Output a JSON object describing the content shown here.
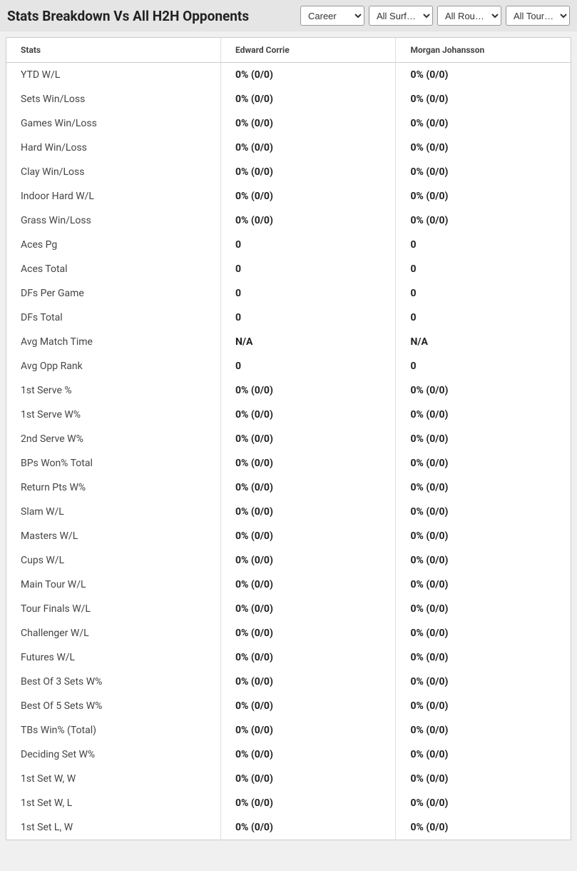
{
  "header": {
    "title": "Stats Breakdown Vs All H2H Opponents"
  },
  "filters": {
    "career": "Career",
    "surface": "All Surf…",
    "round": "All Rou…",
    "tour": "All Tour…"
  },
  "columns": {
    "stats": "Stats",
    "player1": "Edward Corrie",
    "player2": "Morgan Johansson"
  },
  "rows": [
    {
      "label": "YTD W/L",
      "p1": "0% (0/0)",
      "p2": "0% (0/0)"
    },
    {
      "label": "Sets Win/Loss",
      "p1": "0% (0/0)",
      "p2": "0% (0/0)"
    },
    {
      "label": "Games Win/Loss",
      "p1": "0% (0/0)",
      "p2": "0% (0/0)"
    },
    {
      "label": "Hard Win/Loss",
      "p1": "0% (0/0)",
      "p2": "0% (0/0)"
    },
    {
      "label": "Clay Win/Loss",
      "p1": "0% (0/0)",
      "p2": "0% (0/0)"
    },
    {
      "label": "Indoor Hard W/L",
      "p1": "0% (0/0)",
      "p2": "0% (0/0)"
    },
    {
      "label": "Grass Win/Loss",
      "p1": "0% (0/0)",
      "p2": "0% (0/0)"
    },
    {
      "label": "Aces Pg",
      "p1": "0",
      "p2": "0"
    },
    {
      "label": "Aces Total",
      "p1": "0",
      "p2": "0"
    },
    {
      "label": "DFs Per Game",
      "p1": "0",
      "p2": "0"
    },
    {
      "label": "DFs Total",
      "p1": "0",
      "p2": "0"
    },
    {
      "label": "Avg Match Time",
      "p1": "N/A",
      "p2": "N/A"
    },
    {
      "label": "Avg Opp Rank",
      "p1": "0",
      "p2": "0"
    },
    {
      "label": "1st Serve %",
      "p1": "0% (0/0)",
      "p2": "0% (0/0)"
    },
    {
      "label": "1st Serve W%",
      "p1": "0% (0/0)",
      "p2": "0% (0/0)"
    },
    {
      "label": "2nd Serve W%",
      "p1": "0% (0/0)",
      "p2": "0% (0/0)"
    },
    {
      "label": "BPs Won% Total",
      "p1": "0% (0/0)",
      "p2": "0% (0/0)"
    },
    {
      "label": "Return Pts W%",
      "p1": "0% (0/0)",
      "p2": "0% (0/0)"
    },
    {
      "label": "Slam W/L",
      "p1": "0% (0/0)",
      "p2": "0% (0/0)"
    },
    {
      "label": "Masters W/L",
      "p1": "0% (0/0)",
      "p2": "0% (0/0)"
    },
    {
      "label": "Cups W/L",
      "p1": "0% (0/0)",
      "p2": "0% (0/0)"
    },
    {
      "label": "Main Tour W/L",
      "p1": "0% (0/0)",
      "p2": "0% (0/0)"
    },
    {
      "label": "Tour Finals W/L",
      "p1": "0% (0/0)",
      "p2": "0% (0/0)"
    },
    {
      "label": "Challenger W/L",
      "p1": "0% (0/0)",
      "p2": "0% (0/0)"
    },
    {
      "label": "Futures W/L",
      "p1": "0% (0/0)",
      "p2": "0% (0/0)"
    },
    {
      "label": "Best Of 3 Sets W%",
      "p1": "0% (0/0)",
      "p2": "0% (0/0)"
    },
    {
      "label": "Best Of 5 Sets W%",
      "p1": "0% (0/0)",
      "p2": "0% (0/0)"
    },
    {
      "label": "TBs Win% (Total)",
      "p1": "0% (0/0)",
      "p2": "0% (0/0)"
    },
    {
      "label": "Deciding Set W%",
      "p1": "0% (0/0)",
      "p2": "0% (0/0)"
    },
    {
      "label": "1st Set W, W",
      "p1": "0% (0/0)",
      "p2": "0% (0/0)"
    },
    {
      "label": "1st Set W, L",
      "p1": "0% (0/0)",
      "p2": "0% (0/0)"
    },
    {
      "label": "1st Set L, W",
      "p1": "0% (0/0)",
      "p2": "0% (0/0)"
    }
  ]
}
